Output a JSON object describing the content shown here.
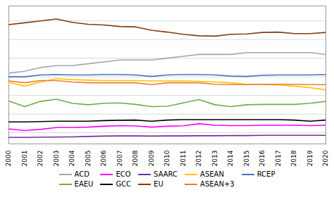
{
  "chart_data": {
    "type": "line",
    "x": [
      2000,
      2001,
      2002,
      2003,
      2004,
      2005,
      2006,
      2007,
      2008,
      2009,
      2010,
      2011,
      2012,
      2013,
      2014,
      2015,
      2016,
      2017,
      2018,
      2019,
      2020
    ],
    "series": [
      {
        "name": "ACD",
        "color": "#a6a6a6",
        "values": [
          0.42,
          0.43,
          0.45,
          0.46,
          0.46,
          0.47,
          0.48,
          0.49,
          0.49,
          0.49,
          0.5,
          0.51,
          0.52,
          0.52,
          0.52,
          0.53,
          0.53,
          0.53,
          0.53,
          0.53,
          0.52
        ]
      },
      {
        "name": "ECO",
        "color": "#ff00ff",
        "values": [
          0.12,
          0.112,
          0.118,
          0.128,
          0.128,
          0.13,
          0.135,
          0.138,
          0.136,
          0.13,
          0.135,
          0.137,
          0.148,
          0.14,
          0.138,
          0.138,
          0.14,
          0.14,
          0.14,
          0.138,
          0.14
        ]
      },
      {
        "name": "SAARC",
        "color": "#7030a0",
        "values": [
          0.075,
          0.075,
          0.076,
          0.077,
          0.078,
          0.08,
          0.082,
          0.083,
          0.083,
          0.082,
          0.083,
          0.083,
          0.084,
          0.084,
          0.085,
          0.085,
          0.086,
          0.086,
          0.086,
          0.086,
          0.086
        ]
      },
      {
        "name": "ASEAN",
        "color": "#ffc000",
        "values": [
          0.37,
          0.35,
          0.372,
          0.39,
          0.385,
          0.382,
          0.38,
          0.38,
          0.38,
          0.378,
          0.378,
          0.378,
          0.376,
          0.372,
          0.368,
          0.36,
          0.358,
          0.356,
          0.35,
          0.342,
          0.33
        ]
      },
      {
        "name": "RCEP",
        "color": "#4472c4",
        "values": [
          0.4,
          0.4,
          0.41,
          0.412,
          0.41,
          0.41,
          0.412,
          0.412,
          0.41,
          0.402,
          0.41,
          0.412,
          0.412,
          0.41,
          0.404,
          0.402,
          0.408,
          0.41,
          0.41,
          0.41,
          0.412
        ]
      },
      {
        "name": "EAEU",
        "color": "#70ad47",
        "values": [
          0.27,
          0.24,
          0.268,
          0.28,
          0.258,
          0.25,
          0.258,
          0.26,
          0.252,
          0.24,
          0.242,
          0.26,
          0.278,
          0.25,
          0.24,
          0.25,
          0.252,
          0.252,
          0.252,
          0.258,
          0.268
        ]
      },
      {
        "name": "GCC",
        "color": "#000000",
        "values": [
          0.158,
          0.158,
          0.16,
          0.162,
          0.162,
          0.162,
          0.165,
          0.167,
          0.168,
          0.162,
          0.168,
          0.17,
          0.17,
          0.17,
          0.17,
          0.17,
          0.17,
          0.17,
          0.168,
          0.162,
          0.168
        ]
      },
      {
        "name": "EU",
        "color": "#843c0c",
        "values": [
          0.68,
          0.69,
          0.7,
          0.71,
          0.692,
          0.682,
          0.678,
          0.67,
          0.668,
          0.65,
          0.64,
          0.628,
          0.62,
          0.618,
          0.628,
          0.63,
          0.638,
          0.64,
          0.632,
          0.632,
          0.638
        ]
      },
      {
        "name": "ASEAN+3",
        "color": "#ed7d31",
        "values": [
          0.378,
          0.368,
          0.38,
          0.38,
          0.372,
          0.368,
          0.368,
          0.368,
          0.368,
          0.358,
          0.368,
          0.368,
          0.368,
          0.36,
          0.358,
          0.358,
          0.36,
          0.36,
          0.36,
          0.358,
          0.358
        ]
      }
    ],
    "xlim": [
      2000,
      2020
    ],
    "xticks": [
      2000,
      2001,
      2002,
      2003,
      2004,
      2005,
      2006,
      2007,
      2008,
      2009,
      2010,
      2011,
      2012,
      2013,
      2014,
      2015,
      2016,
      2017,
      2018,
      2019,
      2020
    ],
    "ylim": [
      0.04,
      0.78
    ],
    "yticks": [
      0.1,
      0.2,
      0.3,
      0.4,
      0.5,
      0.6,
      0.7
    ],
    "grid": true,
    "tick_labels": "x",
    "legend": "bottom"
  }
}
